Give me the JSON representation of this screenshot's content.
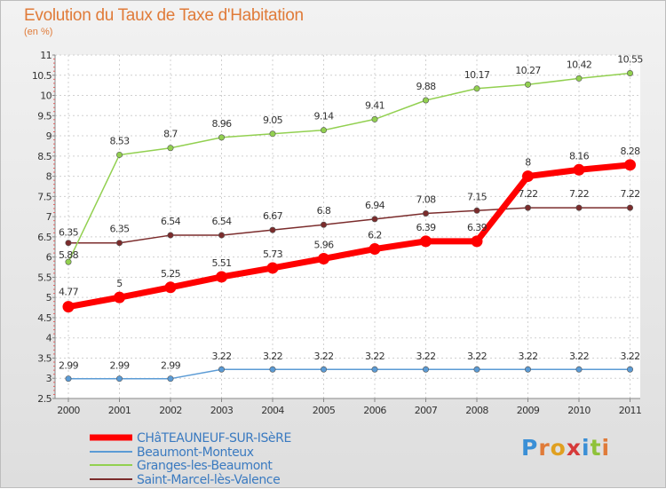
{
  "title": "Evolution du Taux de Taxe d'Habitation",
  "subtitle": "(en %)",
  "logo": {
    "text": "Proxiti",
    "colors": [
      "#3a8fd6",
      "#e07b39",
      "#e0a020",
      "#d63a3a",
      "#3a8fd6",
      "#8fc23a",
      "#e07b39"
    ]
  },
  "chart_data": {
    "type": "line",
    "categories": [
      "2000",
      "2001",
      "2002",
      "2003",
      "2004",
      "2005",
      "2006",
      "2007",
      "2008",
      "2009",
      "2010",
      "2011"
    ],
    "ylim": [
      2.5,
      11
    ],
    "yticks": [
      "2.5",
      "3",
      "3.5",
      "4",
      "4.5",
      "5",
      "5.5",
      "6",
      "6.5",
      "7",
      "7.5",
      "8",
      "8.5",
      "9",
      "9.5",
      "10",
      "10.5",
      "11"
    ],
    "grid": true,
    "series": [
      {
        "name": "CHâTEAUNEUF-SUR-ISèRE",
        "color": "#ff0000",
        "width": 7,
        "values": [
          4.77,
          5,
          5.25,
          5.51,
          5.73,
          5.96,
          6.2,
          6.39,
          6.39,
          8,
          8.16,
          8.28
        ],
        "labels": [
          "4.77",
          "5",
          "5.25",
          "5.51",
          "5.73",
          "5.96",
          "6.2",
          "6.39",
          "6.39",
          "8",
          "8.16",
          "8.28"
        ]
      },
      {
        "name": "Beaumont-Monteux",
        "color": "#5b9bd5",
        "width": 1.5,
        "values": [
          2.99,
          2.99,
          2.99,
          3.22,
          3.22,
          3.22,
          3.22,
          3.22,
          3.22,
          3.22,
          3.22,
          3.22
        ],
        "labels": [
          "2.99",
          "2.99",
          "2.99",
          "3.22",
          "3.22",
          "3.22",
          "3.22",
          "3.22",
          "3.22",
          "3.22",
          "3.22",
          "3.22"
        ]
      },
      {
        "name": "Granges-les-Beaumont",
        "color": "#92d050",
        "width": 1.5,
        "values": [
          5.88,
          8.53,
          8.7,
          8.96,
          9.05,
          9.14,
          9.41,
          9.88,
          10.17,
          10.27,
          10.42,
          10.55
        ],
        "labels": [
          "5.88",
          "8.53",
          "8.7",
          "8.96",
          "9.05",
          "9.14",
          "9.41",
          "9.88",
          "10.17",
          "10.27",
          "10.42",
          "10.55"
        ]
      },
      {
        "name": "Saint-Marcel-lès-Valence",
        "color": "#7b2c2c",
        "width": 1.5,
        "values": [
          6.35,
          6.35,
          6.54,
          6.54,
          6.67,
          6.8,
          6.94,
          7.08,
          7.15,
          7.22,
          7.22,
          7.22
        ],
        "labels": [
          "6.35",
          "6.35",
          "6.54",
          "6.54",
          "6.67",
          "6.8",
          "6.94",
          "7.08",
          "7.15",
          "7.22",
          "7.22",
          "7.22"
        ]
      }
    ]
  }
}
